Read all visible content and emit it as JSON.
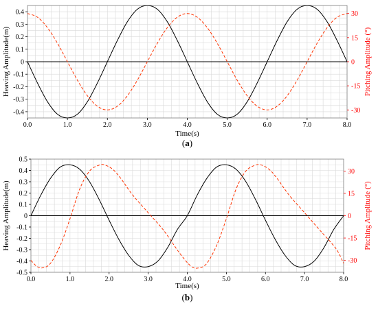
{
  "chart_data": [
    {
      "type": "line",
      "panel_label": "a",
      "xlabel": "Time(s)",
      "ylabel": "Heaving Amplitude(m)",
      "y2label": "Pitching Amplitude (°)",
      "xlim": [
        0,
        8
      ],
      "ylim": [
        -0.45,
        0.45
      ],
      "y2lim": [
        -35,
        35
      ],
      "xticks": [
        "0.0",
        "1.0",
        "2.0",
        "3.0",
        "4.0",
        "5.0",
        "6.0",
        "7.0",
        "8.0"
      ],
      "yticks": [
        "-0.4",
        "-0.3",
        "-0.2",
        "-0.1",
        "0",
        "0.1",
        "0.2",
        "0.3",
        "0.4"
      ],
      "y2ticks": [
        "-30",
        "-15",
        "0",
        "15",
        "30"
      ],
      "grid": true,
      "series": [
        {
          "axis": "left",
          "color": "#000000",
          "dash": "solid",
          "x": [
            0,
            0.25,
            0.5,
            0.75,
            1,
            1.25,
            1.5,
            1.75,
            2,
            2.25,
            2.5,
            2.75,
            3,
            3.25,
            3.5,
            3.75,
            4,
            4.25,
            4.5,
            4.75,
            5,
            5.25,
            5.5,
            5.75,
            6,
            6.25,
            6.5,
            6.75,
            7,
            7.25,
            7.5,
            7.75,
            8
          ],
          "y": [
            0,
            -0.17,
            -0.32,
            -0.42,
            -0.45,
            -0.42,
            -0.32,
            -0.17,
            0,
            0.17,
            0.32,
            0.42,
            0.45,
            0.42,
            0.32,
            0.17,
            0,
            -0.17,
            -0.32,
            -0.42,
            -0.45,
            -0.42,
            -0.32,
            -0.17,
            0,
            0.17,
            0.32,
            0.42,
            0.45,
            0.42,
            0.32,
            0.17,
            0
          ]
        },
        {
          "axis": "right",
          "color": "#ff3300",
          "dash": "dashed",
          "x": [
            0,
            0.25,
            0.5,
            0.75,
            1,
            1.25,
            1.5,
            1.75,
            2,
            2.25,
            2.5,
            2.75,
            3,
            3.25,
            3.5,
            3.75,
            4,
            4.25,
            4.5,
            4.75,
            5,
            5.25,
            5.5,
            5.75,
            6,
            6.25,
            6.5,
            6.75,
            7,
            7.25,
            7.5,
            7.75,
            8
          ],
          "y": [
            30,
            27.7,
            21.2,
            11.5,
            0,
            -11.5,
            -21.2,
            -27.7,
            -30,
            -27.7,
            -21.2,
            -11.5,
            0,
            11.5,
            21.2,
            27.7,
            30,
            27.7,
            21.2,
            11.5,
            0,
            -11.5,
            -21.2,
            -27.7,
            -30,
            -27.7,
            -21.2,
            -11.5,
            0,
            11.5,
            21.2,
            27.7,
            30
          ]
        }
      ]
    },
    {
      "type": "line",
      "panel_label": "b",
      "xlabel": "Time(s)",
      "ylabel": "Heaving Amplitude(m)",
      "y2label": "Pitching Amplitude (°)",
      "xlim": [
        0,
        8
      ],
      "ylim": [
        -0.5,
        0.5
      ],
      "y2lim": [
        -38,
        38
      ],
      "xticks": [
        "0.0",
        "1.0",
        "2.0",
        "3.0",
        "4.0",
        "5.0",
        "6.0",
        "7.0",
        "8.0"
      ],
      "yticks": [
        "-0.5",
        "-0.4",
        "-0.3",
        "-0.2",
        "-0.1",
        "0",
        "0.1",
        "0.2",
        "0.3",
        "0.4",
        "0.5"
      ],
      "y2ticks": [
        "-30",
        "-15",
        "0",
        "15",
        "30"
      ],
      "grid": true,
      "series": [
        {
          "axis": "left",
          "color": "#000000",
          "dash": "solid",
          "x": [
            0,
            0.25,
            0.5,
            0.75,
            1,
            1.25,
            1.5,
            1.75,
            2,
            2.25,
            2.5,
            2.75,
            3,
            3.25,
            3.5,
            3.75,
            4,
            4.25,
            4.5,
            4.75,
            5,
            5.25,
            5.5,
            5.75,
            6,
            6.25,
            6.5,
            6.75,
            7,
            7.25,
            7.5,
            7.75,
            8
          ],
          "y": [
            0,
            0.18,
            0.33,
            0.43,
            0.45,
            0.41,
            0.3,
            0.14,
            -0.04,
            -0.21,
            -0.35,
            -0.44,
            -0.45,
            -0.4,
            -0.28,
            -0.12,
            0,
            0.18,
            0.33,
            0.43,
            0.45,
            0.41,
            0.3,
            0.14,
            -0.04,
            -0.21,
            -0.35,
            -0.44,
            -0.45,
            -0.4,
            -0.28,
            -0.12,
            0
          ]
        },
        {
          "axis": "right",
          "color": "#ff3300",
          "dash": "dashed",
          "x": [
            0,
            0.15,
            0.3,
            0.5,
            0.75,
            1,
            1.25,
            1.5,
            1.75,
            1.9,
            2.1,
            2.3,
            2.6,
            3,
            3.4,
            3.8,
            4.1,
            4.3,
            4.5,
            4.75,
            5,
            5.25,
            5.5,
            5.75,
            5.9,
            6.1,
            6.3,
            6.6,
            7,
            7.4,
            7.8,
            8
          ],
          "y": [
            -30,
            -34,
            -35,
            -32,
            -20,
            -2,
            18,
            30,
            34,
            34,
            31,
            25,
            14,
            2,
            -10,
            -25,
            -34,
            -35,
            -32,
            -20,
            -2,
            18,
            30,
            34,
            34,
            31,
            25,
            14,
            2,
            -10,
            -22,
            -32
          ]
        }
      ]
    }
  ]
}
